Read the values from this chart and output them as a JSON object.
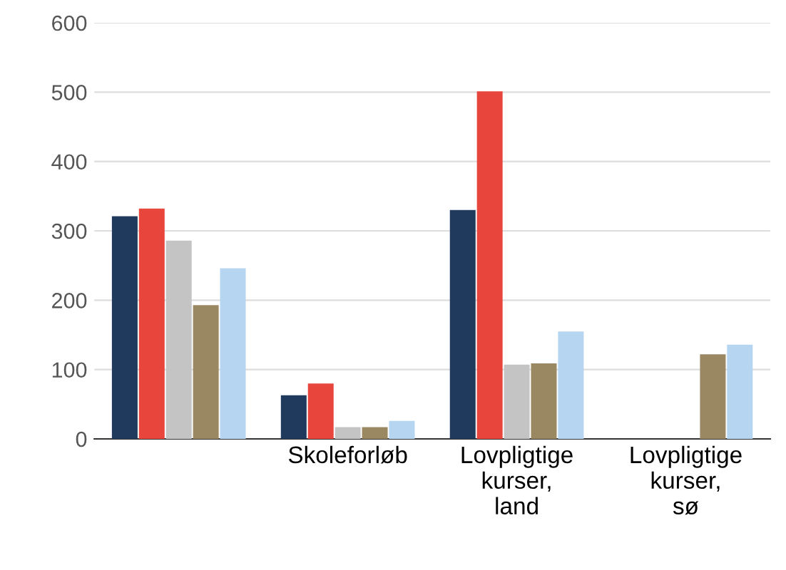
{
  "chart_data": {
    "type": "bar",
    "categories": [
      null,
      "Skoleforløb",
      "Lovpligtige\nkurser,\nland",
      "Lovpligtige\nkurser,\nsø"
    ],
    "series": [
      {
        "color": "#1f3a5c",
        "values": [
          321,
          63,
          330,
          null
        ]
      },
      {
        "color": "#e8453c",
        "values": [
          332,
          80,
          501,
          null
        ]
      },
      {
        "color": "#c4c4c4",
        "values": [
          286,
          17,
          107,
          null
        ]
      },
      {
        "color": "#9a8862",
        "values": [
          193,
          17,
          109,
          122
        ]
      },
      {
        "color": "#b5d5f0",
        "values": [
          246,
          26,
          155,
          136
        ]
      }
    ],
    "ylim": [
      0,
      600
    ],
    "yticks": [
      0,
      100,
      200,
      300,
      400,
      500,
      600
    ],
    "grid": "y",
    "legend": false
  }
}
